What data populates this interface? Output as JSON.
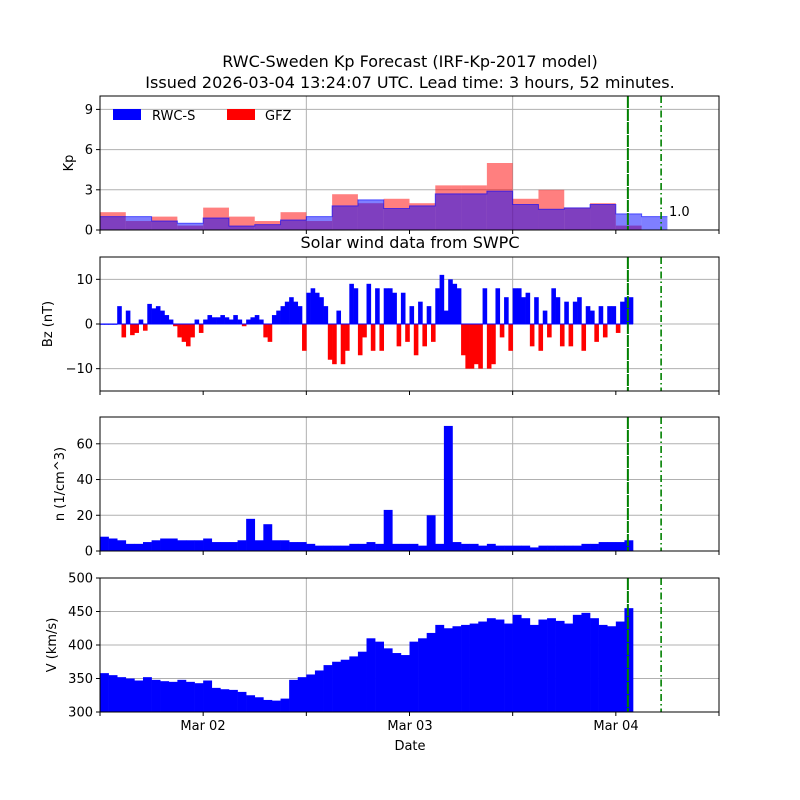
{
  "chart_data": {
    "title": "RWC-Sweden Kp Forecast (IRF-Kp-2017 model)",
    "subtitle": "Issued 2026-03-04 13:24:07 UTC. Lead time: 3 hours, 52 minutes.",
    "xlabel": "Date",
    "x_range": [
      "2026-03-01T12:00",
      "2026-03-04T12:00"
    ],
    "x_tick_labels": [
      "Mar 02",
      "Mar 03",
      "Mar 04"
    ],
    "now_line": {
      "time": "2026-03-04T01:24",
      "color": "#008000",
      "style": "solid"
    },
    "lead_line": {
      "time": "2026-03-04T05:16",
      "color": "#008000",
      "style": "dash-dot"
    },
    "grid": true,
    "panels": [
      {
        "type": "bar",
        "ylabel": "Kp",
        "ylim": [
          0,
          10
        ],
        "yticks": [
          "0",
          "3",
          "6",
          "9"
        ],
        "bin_hours": 3,
        "start": "2026-03-01T12:00",
        "legend": "top-left",
        "annotation": "1.0",
        "series": [
          {
            "name": "RWC-S",
            "color": "#0000ff",
            "values": [
              1.0,
              1.0,
              0.67,
              0.5,
              0.9,
              0.3,
              0.4,
              0.75,
              1.0,
              1.8,
              2.25,
              1.6,
              1.8,
              2.7,
              2.7,
              2.9,
              1.9,
              1.55,
              1.65,
              1.9,
              1.2,
              1.0
            ]
          },
          {
            "name": "GFZ",
            "color": "#ff0000",
            "values": [
              1.33,
              0.67,
              1.0,
              0.33,
              1.67,
              1.0,
              0.67,
              1.33,
              0.67,
              2.67,
              2.0,
              2.33,
              2.0,
              3.33,
              3.33,
              5.0,
              2.33,
              3.0,
              1.67,
              2.0,
              0.33,
              null
            ]
          }
        ]
      },
      {
        "type": "area",
        "title": "Solar wind data from SWPC",
        "ylabel": "Bz (nT)",
        "ylim": [
          -15,
          15
        ],
        "yticks": [
          "−10",
          "0",
          "10"
        ],
        "step_minutes": 30,
        "start": "2026-03-01T12:00",
        "positive_color": "#0000ff",
        "negative_color": "#ff0000",
        "values": [
          0,
          0,
          0,
          0,
          4,
          -3,
          3,
          -2.5,
          -2,
          1,
          -1.5,
          4.5,
          3.5,
          4,
          3,
          2,
          1,
          -0.5,
          -3,
          -4,
          -5,
          -3,
          1,
          -2,
          1,
          2,
          1.5,
          1.5,
          2,
          1.5,
          1,
          2,
          1,
          -0.5,
          1,
          1.5,
          2,
          1,
          -3,
          -4,
          2,
          3,
          4,
          5,
          6,
          5,
          4,
          -6,
          7,
          8,
          7,
          6,
          4,
          -8,
          -9,
          3,
          -9,
          -6,
          9,
          8,
          -7,
          -3,
          9,
          -6,
          8,
          -6,
          8,
          8,
          7,
          -5,
          7,
          -4,
          4,
          -7,
          5,
          -5,
          4,
          -4,
          8,
          11,
          3,
          10,
          9,
          8,
          -7,
          -10,
          -10,
          -9,
          -10,
          8,
          -10,
          -9,
          8,
          -3,
          6,
          -6,
          8,
          8,
          6,
          7,
          -5,
          6,
          -6,
          3,
          -3,
          8,
          6,
          -5,
          5,
          -5,
          5,
          6,
          -6,
          4,
          3,
          -4,
          4,
          -3,
          4,
          4,
          -2,
          5,
          6,
          6
        ]
      },
      {
        "type": "area",
        "ylabel": "n (1/cm^3)",
        "ylim": [
          0,
          75
        ],
        "yticks": [
          "0",
          "20",
          "40",
          "60"
        ],
        "step_minutes": 60,
        "start": "2026-03-01T12:00",
        "color": "#0000ff",
        "values": [
          8,
          7,
          6,
          4,
          4,
          5,
          6,
          7,
          7,
          6,
          6,
          6,
          7,
          5,
          5,
          5,
          6,
          18,
          6,
          15,
          6,
          6,
          5,
          5,
          4,
          3,
          3,
          3,
          3,
          4,
          4,
          5,
          4,
          23,
          4,
          4,
          4,
          3,
          20,
          4,
          70,
          5,
          4,
          4,
          3,
          4,
          3,
          3,
          3,
          3,
          2,
          3,
          3,
          3,
          3,
          3,
          4,
          4,
          5,
          5,
          5,
          6
        ]
      },
      {
        "type": "area",
        "ylabel": "V (km/s)",
        "ylim": [
          300,
          500
        ],
        "yticks": [
          "300",
          "350",
          "400",
          "450",
          "500"
        ],
        "step_minutes": 60,
        "start": "2026-03-01T12:00",
        "color": "#0000ff",
        "values": [
          358,
          355,
          352,
          350,
          347,
          352,
          348,
          346,
          345,
          348,
          345,
          343,
          347,
          336,
          334,
          333,
          330,
          325,
          322,
          318,
          317,
          320,
          348,
          352,
          356,
          362,
          370,
          375,
          378,
          383,
          390,
          410,
          405,
          395,
          388,
          385,
          405,
          410,
          418,
          430,
          425,
          428,
          430,
          432,
          435,
          440,
          438,
          432,
          445,
          440,
          430,
          438,
          440,
          436,
          432,
          445,
          448,
          440,
          430,
          428,
          435,
          455
        ]
      }
    ]
  }
}
